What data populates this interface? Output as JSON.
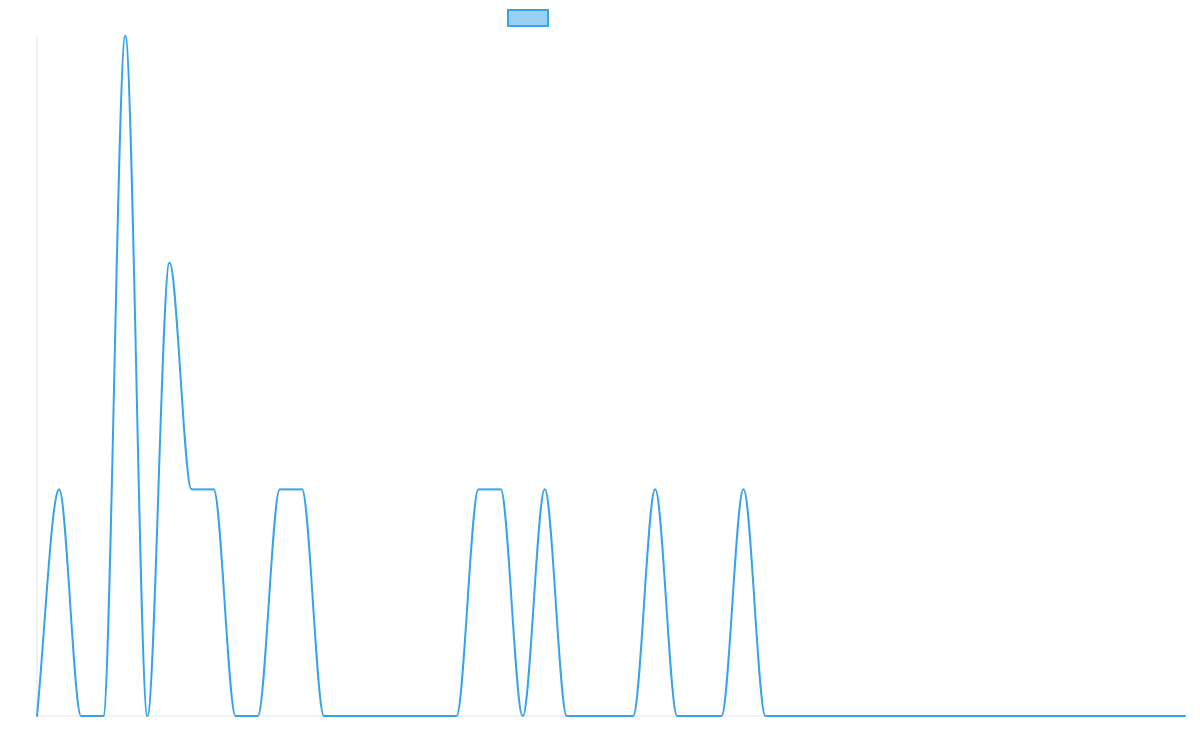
{
  "chart_data": {
    "type": "line",
    "title": "",
    "xlabel": "",
    "ylabel": "",
    "x": [
      0,
      1,
      2,
      3,
      4,
      5,
      6,
      7,
      8,
      9,
      10,
      11,
      12,
      13,
      14,
      15,
      16,
      17,
      18,
      19,
      20,
      21,
      22,
      23,
      24,
      25,
      26,
      27,
      28,
      29,
      30,
      31,
      32,
      33,
      34,
      35,
      36,
      37,
      38,
      39,
      40,
      41,
      42,
      43,
      44,
      45,
      46,
      47,
      48,
      49,
      50,
      51,
      52
    ],
    "series": [
      {
        "name": "",
        "color": "#36a2eb",
        "fill": "#9ad0f5",
        "values": [
          0,
          1,
          0,
          0,
          3,
          0,
          2,
          1,
          1,
          0,
          0,
          1,
          1,
          0,
          0,
          0,
          0,
          0,
          0,
          0,
          1,
          1,
          0,
          1,
          0,
          0,
          0,
          0,
          1,
          0,
          0,
          0,
          1,
          0,
          0,
          0,
          0,
          0,
          0,
          0,
          0,
          0,
          0,
          0,
          0,
          0,
          0,
          0,
          0,
          0,
          0,
          0,
          0
        ]
      }
    ],
    "ylim": [
      0,
      3
    ],
    "grid": false,
    "legend_position": "top-center"
  }
}
